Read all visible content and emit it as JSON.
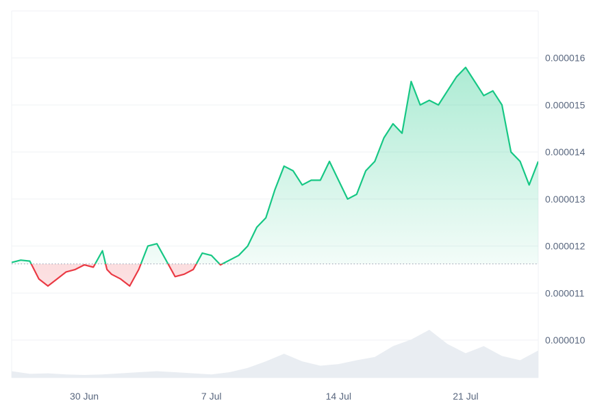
{
  "chart_data": {
    "type": "area",
    "title": "",
    "xlabel": "",
    "ylabel": "",
    "grid": true,
    "y_axis_position": "right",
    "ylim": [
      9.2e-06,
      1.7e-05
    ],
    "y_ticks": [
      "0.000010",
      "0.000011",
      "0.000012",
      "0.000013",
      "0.000014",
      "0.000015",
      "0.000016"
    ],
    "y_tick_values": [
      1e-05,
      1.1e-05,
      1.2e-05,
      1.3e-05,
      1.4e-05,
      1.5e-05,
      1.6e-05
    ],
    "x_range": [
      "2024-06-26",
      "2024-07-25"
    ],
    "x_ticks": [
      {
        "label": "30 Jun",
        "date": "2024-06-30"
      },
      {
        "label": "7 Jul",
        "date": "2024-07-07"
      },
      {
        "label": "14 Jul",
        "date": "2024-07-14"
      },
      {
        "label": "21 Jul",
        "date": "2024-07-21"
      }
    ],
    "baseline": 1.162e-05,
    "colors": {
      "above": "#16c784",
      "below": "#ea3943",
      "above_fill": "#16c784",
      "below_fill": "#ea3943",
      "volume": "#e9edf2",
      "baseline_dots": "#9aa3b5"
    },
    "series": [
      {
        "x": [
          "2024-06-26T00:00",
          "2024-06-26T12:00",
          "2024-06-27T00:00",
          "2024-06-27T12:00",
          "2024-06-28T00:00",
          "2024-06-28T12:00",
          "2024-06-29T00:00",
          "2024-06-29T12:00",
          "2024-06-30T00:00",
          "2024-06-30T12:00",
          "2024-07-01T00:00",
          "2024-07-01T06:00",
          "2024-07-01T12:00",
          "2024-07-02T00:00",
          "2024-07-02T12:00",
          "2024-07-03T00:00",
          "2024-07-03T12:00",
          "2024-07-04T00:00",
          "2024-07-04T12:00",
          "2024-07-05T00:00",
          "2024-07-05T12:00",
          "2024-07-06T00:00",
          "2024-07-06T12:00",
          "2024-07-07T00:00",
          "2024-07-07T12:00",
          "2024-07-08T00:00",
          "2024-07-08T12:00",
          "2024-07-09T00:00",
          "2024-07-09T12:00",
          "2024-07-10T00:00",
          "2024-07-10T12:00",
          "2024-07-11T00:00",
          "2024-07-11T12:00",
          "2024-07-12T00:00",
          "2024-07-12T12:00",
          "2024-07-13T00:00",
          "2024-07-13T12:00",
          "2024-07-14T00:00",
          "2024-07-14T12:00",
          "2024-07-15T00:00",
          "2024-07-15T12:00",
          "2024-07-16T00:00",
          "2024-07-16T12:00",
          "2024-07-17T00:00",
          "2024-07-17T12:00",
          "2024-07-18T00:00",
          "2024-07-18T12:00",
          "2024-07-19T00:00",
          "2024-07-19T12:00",
          "2024-07-20T00:00",
          "2024-07-20T12:00",
          "2024-07-21T00:00",
          "2024-07-21T12:00",
          "2024-07-22T00:00",
          "2024-07-22T12:00",
          "2024-07-23T00:00",
          "2024-07-23T12:00",
          "2024-07-24T00:00",
          "2024-07-24T12:00",
          "2024-07-25T00:00"
        ],
        "values": [
          1.165e-05,
          1.17e-05,
          1.168e-05,
          1.13e-05,
          1.115e-05,
          1.13e-05,
          1.145e-05,
          1.15e-05,
          1.16e-05,
          1.155e-05,
          1.19e-05,
          1.15e-05,
          1.14e-05,
          1.13e-05,
          1.115e-05,
          1.15e-05,
          1.2e-05,
          1.205e-05,
          1.17e-05,
          1.135e-05,
          1.14e-05,
          1.15e-05,
          1.185e-05,
          1.18e-05,
          1.16e-05,
          1.17e-05,
          1.18e-05,
          1.2e-05,
          1.24e-05,
          1.26e-05,
          1.32e-05,
          1.37e-05,
          1.36e-05,
          1.33e-05,
          1.34e-05,
          1.34e-05,
          1.38e-05,
          1.34e-05,
          1.3e-05,
          1.31e-05,
          1.36e-05,
          1.38e-05,
          1.43e-05,
          1.46e-05,
          1.44e-05,
          1.55e-05,
          1.5e-05,
          1.51e-05,
          1.5e-05,
          1.53e-05,
          1.56e-05,
          1.58e-05,
          1.55e-05,
          1.52e-05,
          1.53e-05,
          1.5e-05,
          1.4e-05,
          1.38e-05,
          1.33e-05,
          1.38e-05
        ]
      }
    ],
    "volume": {
      "x": [
        "2024-06-26",
        "2024-06-27",
        "2024-06-28",
        "2024-06-29",
        "2024-06-30",
        "2024-07-01",
        "2024-07-02",
        "2024-07-03",
        "2024-07-04",
        "2024-07-05",
        "2024-07-06",
        "2024-07-07",
        "2024-07-08",
        "2024-07-09",
        "2024-07-10",
        "2024-07-11",
        "2024-07-12",
        "2024-07-13",
        "2024-07-14",
        "2024-07-15",
        "2024-07-16",
        "2024-07-17",
        "2024-07-18",
        "2024-07-19",
        "2024-07-20",
        "2024-07-21",
        "2024-07-22",
        "2024-07-23",
        "2024-07-24",
        "2024-07-25"
      ],
      "values": [
        0.12,
        0.07,
        0.08,
        0.06,
        0.05,
        0.06,
        0.08,
        0.1,
        0.12,
        0.1,
        0.08,
        0.06,
        0.1,
        0.18,
        0.3,
        0.44,
        0.3,
        0.22,
        0.25,
        0.32,
        0.38,
        0.58,
        0.7,
        0.88,
        0.62,
        0.45,
        0.58,
        0.4,
        0.32,
        0.5
      ]
    }
  }
}
